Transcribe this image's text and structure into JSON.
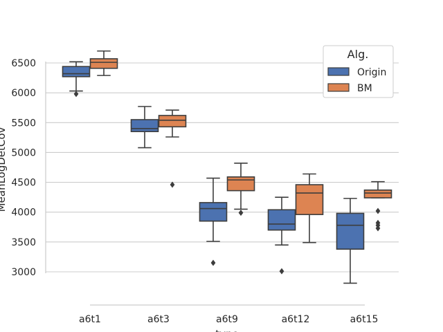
{
  "chart_data": {
    "type": "box",
    "xlabel": "type",
    "ylabel": "MeanLogDetCov",
    "categories": [
      "a6t1",
      "a6t3",
      "a6t9",
      "a6t12",
      "a6t15"
    ],
    "ylim": [
      2500,
      6650
    ],
    "yticks": [
      3000,
      3500,
      4000,
      4500,
      5000,
      5500,
      6000,
      6500
    ],
    "grid": true,
    "legend": {
      "title": "Alg.",
      "position": "top-right"
    },
    "series": [
      {
        "name": "Origin",
        "color": "#4c72b0",
        "boxes": [
          {
            "whislo": 6030,
            "q1": 6270,
            "med": 6320,
            "q3": 6440,
            "whishi": 6520,
            "fliers": [
              5980
            ]
          },
          {
            "whislo": 5080,
            "q1": 5350,
            "med": 5400,
            "q3": 5550,
            "whishi": 5770,
            "fliers": []
          },
          {
            "whislo": 3510,
            "q1": 3850,
            "med": 4060,
            "q3": 4160,
            "whishi": 4570,
            "fliers": [
              3150
            ]
          },
          {
            "whislo": 3450,
            "q1": 3700,
            "med": 3800,
            "q3": 4040,
            "whishi": 4250,
            "fliers": [
              3010
            ]
          },
          {
            "whislo": 2810,
            "q1": 3380,
            "med": 3780,
            "q3": 3980,
            "whishi": 4230,
            "fliers": []
          }
        ]
      },
      {
        "name": "BM",
        "color": "#dd8452",
        "boxes": [
          {
            "whislo": 6290,
            "q1": 6410,
            "med": 6510,
            "q3": 6570,
            "whishi": 6700,
            "fliers": []
          },
          {
            "whislo": 5260,
            "q1": 5430,
            "med": 5540,
            "q3": 5620,
            "whishi": 5710,
            "fliers": [
              4460
            ]
          },
          {
            "whislo": 4050,
            "q1": 4360,
            "med": 4540,
            "q3": 4590,
            "whishi": 4820,
            "fliers": [
              3990
            ]
          },
          {
            "whislo": 3490,
            "q1": 3960,
            "med": 4320,
            "q3": 4460,
            "whishi": 4640,
            "fliers": []
          },
          {
            "whislo": 4240,
            "q1": 4240,
            "med": 4320,
            "q3": 4370,
            "whishi": 4510,
            "fliers": [
              4020,
              3820,
              3780,
              3730
            ]
          }
        ]
      }
    ]
  }
}
